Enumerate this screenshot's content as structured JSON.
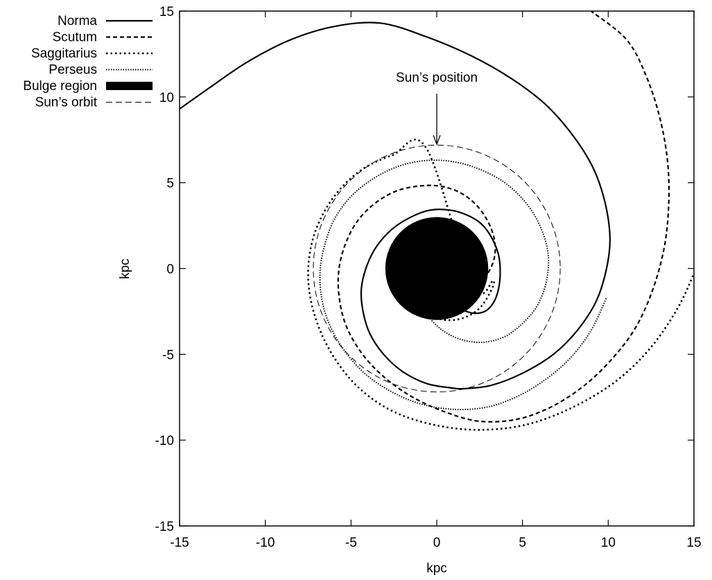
{
  "chart_data": {
    "type": "line",
    "title": "",
    "xlabel": "kpc",
    "ylabel": "kpc",
    "xlim": [
      -15,
      15
    ],
    "ylim": [
      -15,
      15
    ],
    "xticks": [
      -15,
      -10,
      -5,
      0,
      5,
      10,
      15
    ],
    "yticks": [
      -15,
      -10,
      -5,
      0,
      5,
      10,
      15
    ],
    "grid": false,
    "legend_position": "top-left",
    "series": [
      {
        "name": "Norma",
        "style": "solid",
        "color": "#000000",
        "points": [
          [
            -1.0,
            -1.0
          ],
          [
            -0.6,
            -1.4
          ],
          [
            0.2,
            -1.9
          ],
          [
            1.2,
            -2.3
          ],
          [
            2.1,
            -2.6
          ],
          [
            2.8,
            -2.5
          ],
          [
            3.3,
            -2.0
          ],
          [
            3.6,
            -1.2
          ],
          [
            3.7,
            -0.2
          ],
          [
            3.6,
            0.8
          ],
          [
            3.2,
            1.8
          ],
          [
            2.6,
            2.6
          ],
          [
            1.8,
            3.1
          ],
          [
            0.8,
            3.4
          ],
          [
            -0.4,
            3.4
          ],
          [
            -1.5,
            3.0
          ],
          [
            -2.6,
            2.3
          ],
          [
            -3.5,
            1.3
          ],
          [
            -4.1,
            0.1
          ],
          [
            -4.4,
            -1.2
          ],
          [
            -4.3,
            -2.5
          ],
          [
            -3.9,
            -3.8
          ],
          [
            -3.1,
            -5.0
          ],
          [
            -2.0,
            -6.0
          ],
          [
            -0.6,
            -6.7
          ],
          [
            0.8,
            -6.95
          ],
          [
            1.6,
            -7.0
          ],
          [
            3.2,
            -6.8
          ],
          [
            5.0,
            -6.1
          ],
          [
            6.8,
            -5.0
          ],
          [
            8.2,
            -3.6
          ],
          [
            9.3,
            -1.9
          ],
          [
            9.9,
            0.0
          ],
          [
            10.1,
            1.8
          ],
          [
            9.8,
            3.9
          ],
          [
            9.1,
            5.9
          ],
          [
            7.9,
            7.8
          ],
          [
            6.3,
            9.6
          ],
          [
            4.3,
            11.1
          ],
          [
            2.0,
            12.4
          ],
          [
            -0.6,
            13.5
          ],
          [
            -3.3,
            14.3
          ],
          [
            -6.0,
            14.1
          ],
          [
            -8.6,
            13.3
          ],
          [
            -11.1,
            12.0
          ],
          [
            -13.3,
            10.5
          ],
          [
            -15.0,
            9.3
          ]
        ]
      },
      {
        "name": "Scutum",
        "style": "dashed",
        "color": "#000000",
        "points": [
          [
            2.8,
            -0.6
          ],
          [
            3.3,
            0.4
          ],
          [
            3.4,
            1.4
          ],
          [
            3.1,
            2.5
          ],
          [
            2.4,
            3.6
          ],
          [
            1.4,
            4.4
          ],
          [
            0.2,
            4.8
          ],
          [
            -1.1,
            4.8
          ],
          [
            -2.4,
            4.5
          ],
          [
            -3.6,
            3.8
          ],
          [
            -4.6,
            2.8
          ],
          [
            -5.3,
            1.5
          ],
          [
            -5.7,
            0.0
          ],
          [
            -5.7,
            -1.6
          ],
          [
            -5.3,
            -3.3
          ],
          [
            -4.4,
            -4.9
          ],
          [
            -3.1,
            -6.3
          ],
          [
            -1.4,
            -7.5
          ],
          [
            0.6,
            -8.4
          ],
          [
            2.5,
            -8.9
          ],
          [
            4.6,
            -8.8
          ],
          [
            6.6,
            -8.1
          ],
          [
            8.5,
            -6.9
          ],
          [
            10.1,
            -5.4
          ],
          [
            11.5,
            -3.6
          ],
          [
            12.5,
            -1.5
          ],
          [
            13.2,
            0.9
          ],
          [
            13.5,
            3.2
          ],
          [
            13.5,
            5.8
          ],
          [
            13.1,
            8.4
          ],
          [
            12.3,
            11.0
          ],
          [
            11.1,
            13.3
          ],
          [
            9.0,
            15.0
          ]
        ]
      },
      {
        "name": "Saggitarius",
        "style": "dotted",
        "color": "#000000",
        "points": [
          [
            -2.5,
            0.8
          ],
          [
            -2.4,
            -0.3
          ],
          [
            -2.0,
            -1.3
          ],
          [
            -1.4,
            -2.1
          ],
          [
            -0.5,
            -2.7
          ],
          [
            0.5,
            -3.0
          ],
          [
            1.5,
            -2.9
          ],
          [
            2.4,
            -2.4
          ],
          [
            3.0,
            -1.6
          ],
          [
            3.3,
            -0.7
          ],
          [
            2.1,
            -1.0
          ],
          [
            -0.6,
            7.0
          ],
          [
            -2.6,
            6.6
          ],
          [
            -4.6,
            5.6
          ],
          [
            -6.2,
            3.9
          ],
          [
            -7.2,
            1.8
          ],
          [
            -7.5,
            -0.5
          ],
          [
            -7.1,
            -2.8
          ],
          [
            -6.1,
            -5.0
          ],
          [
            -4.6,
            -6.9
          ],
          [
            -2.6,
            -8.3
          ],
          [
            -0.2,
            -9.1
          ],
          [
            2.4,
            -9.4
          ],
          [
            5.2,
            -9.1
          ],
          [
            7.9,
            -8.1
          ],
          [
            10.4,
            -6.6
          ],
          [
            12.4,
            -4.7
          ],
          [
            14.0,
            -2.4
          ],
          [
            15.0,
            -0.3
          ]
        ]
      },
      {
        "name": "Perseus",
        "style": "fine-dotted",
        "color": "#000000",
        "points": [
          [
            -1.0,
            -1.5
          ],
          [
            -0.6,
            -2.6
          ],
          [
            0.2,
            -3.5
          ],
          [
            1.3,
            -4.1
          ],
          [
            2.6,
            -4.3
          ],
          [
            3.9,
            -4.0
          ],
          [
            5.0,
            -3.2
          ],
          [
            5.9,
            -2.1
          ],
          [
            6.4,
            -0.7
          ],
          [
            6.5,
            0.8
          ],
          [
            6.1,
            2.3
          ],
          [
            5.3,
            3.7
          ],
          [
            4.1,
            4.9
          ],
          [
            2.7,
            5.7
          ],
          [
            1.1,
            6.2
          ],
          [
            -0.5,
            6.3
          ],
          [
            -2.1,
            6.0
          ],
          [
            -3.6,
            5.3
          ],
          [
            -4.9,
            4.3
          ],
          [
            -5.9,
            3.0
          ],
          [
            -6.5,
            1.5
          ],
          [
            -6.8,
            -0.1
          ],
          [
            -6.7,
            -1.8
          ],
          [
            -6.2,
            -3.4
          ],
          [
            -5.3,
            -4.9
          ],
          [
            -4.1,
            -6.2
          ],
          [
            -2.6,
            -7.2
          ],
          [
            -0.9,
            -7.9
          ],
          [
            0.9,
            -8.2
          ],
          [
            2.8,
            -8.1
          ],
          [
            4.6,
            -7.5
          ],
          [
            6.3,
            -6.5
          ],
          [
            7.8,
            -5.2
          ],
          [
            9.0,
            -3.6
          ],
          [
            9.9,
            -1.7
          ]
        ]
      },
      {
        "name": "Bulge region",
        "style": "filled-disc",
        "color": "#000000",
        "center": [
          0,
          0
        ],
        "radius": 3
      },
      {
        "name": "Sun’s orbit",
        "style": "thin-dashed",
        "color": "#000000",
        "center": [
          0,
          0
        ],
        "radius": 7.2
      }
    ],
    "annotations": [
      {
        "text": "Sun’s position",
        "arrow_to": [
          0,
          7.2
        ]
      }
    ]
  }
}
